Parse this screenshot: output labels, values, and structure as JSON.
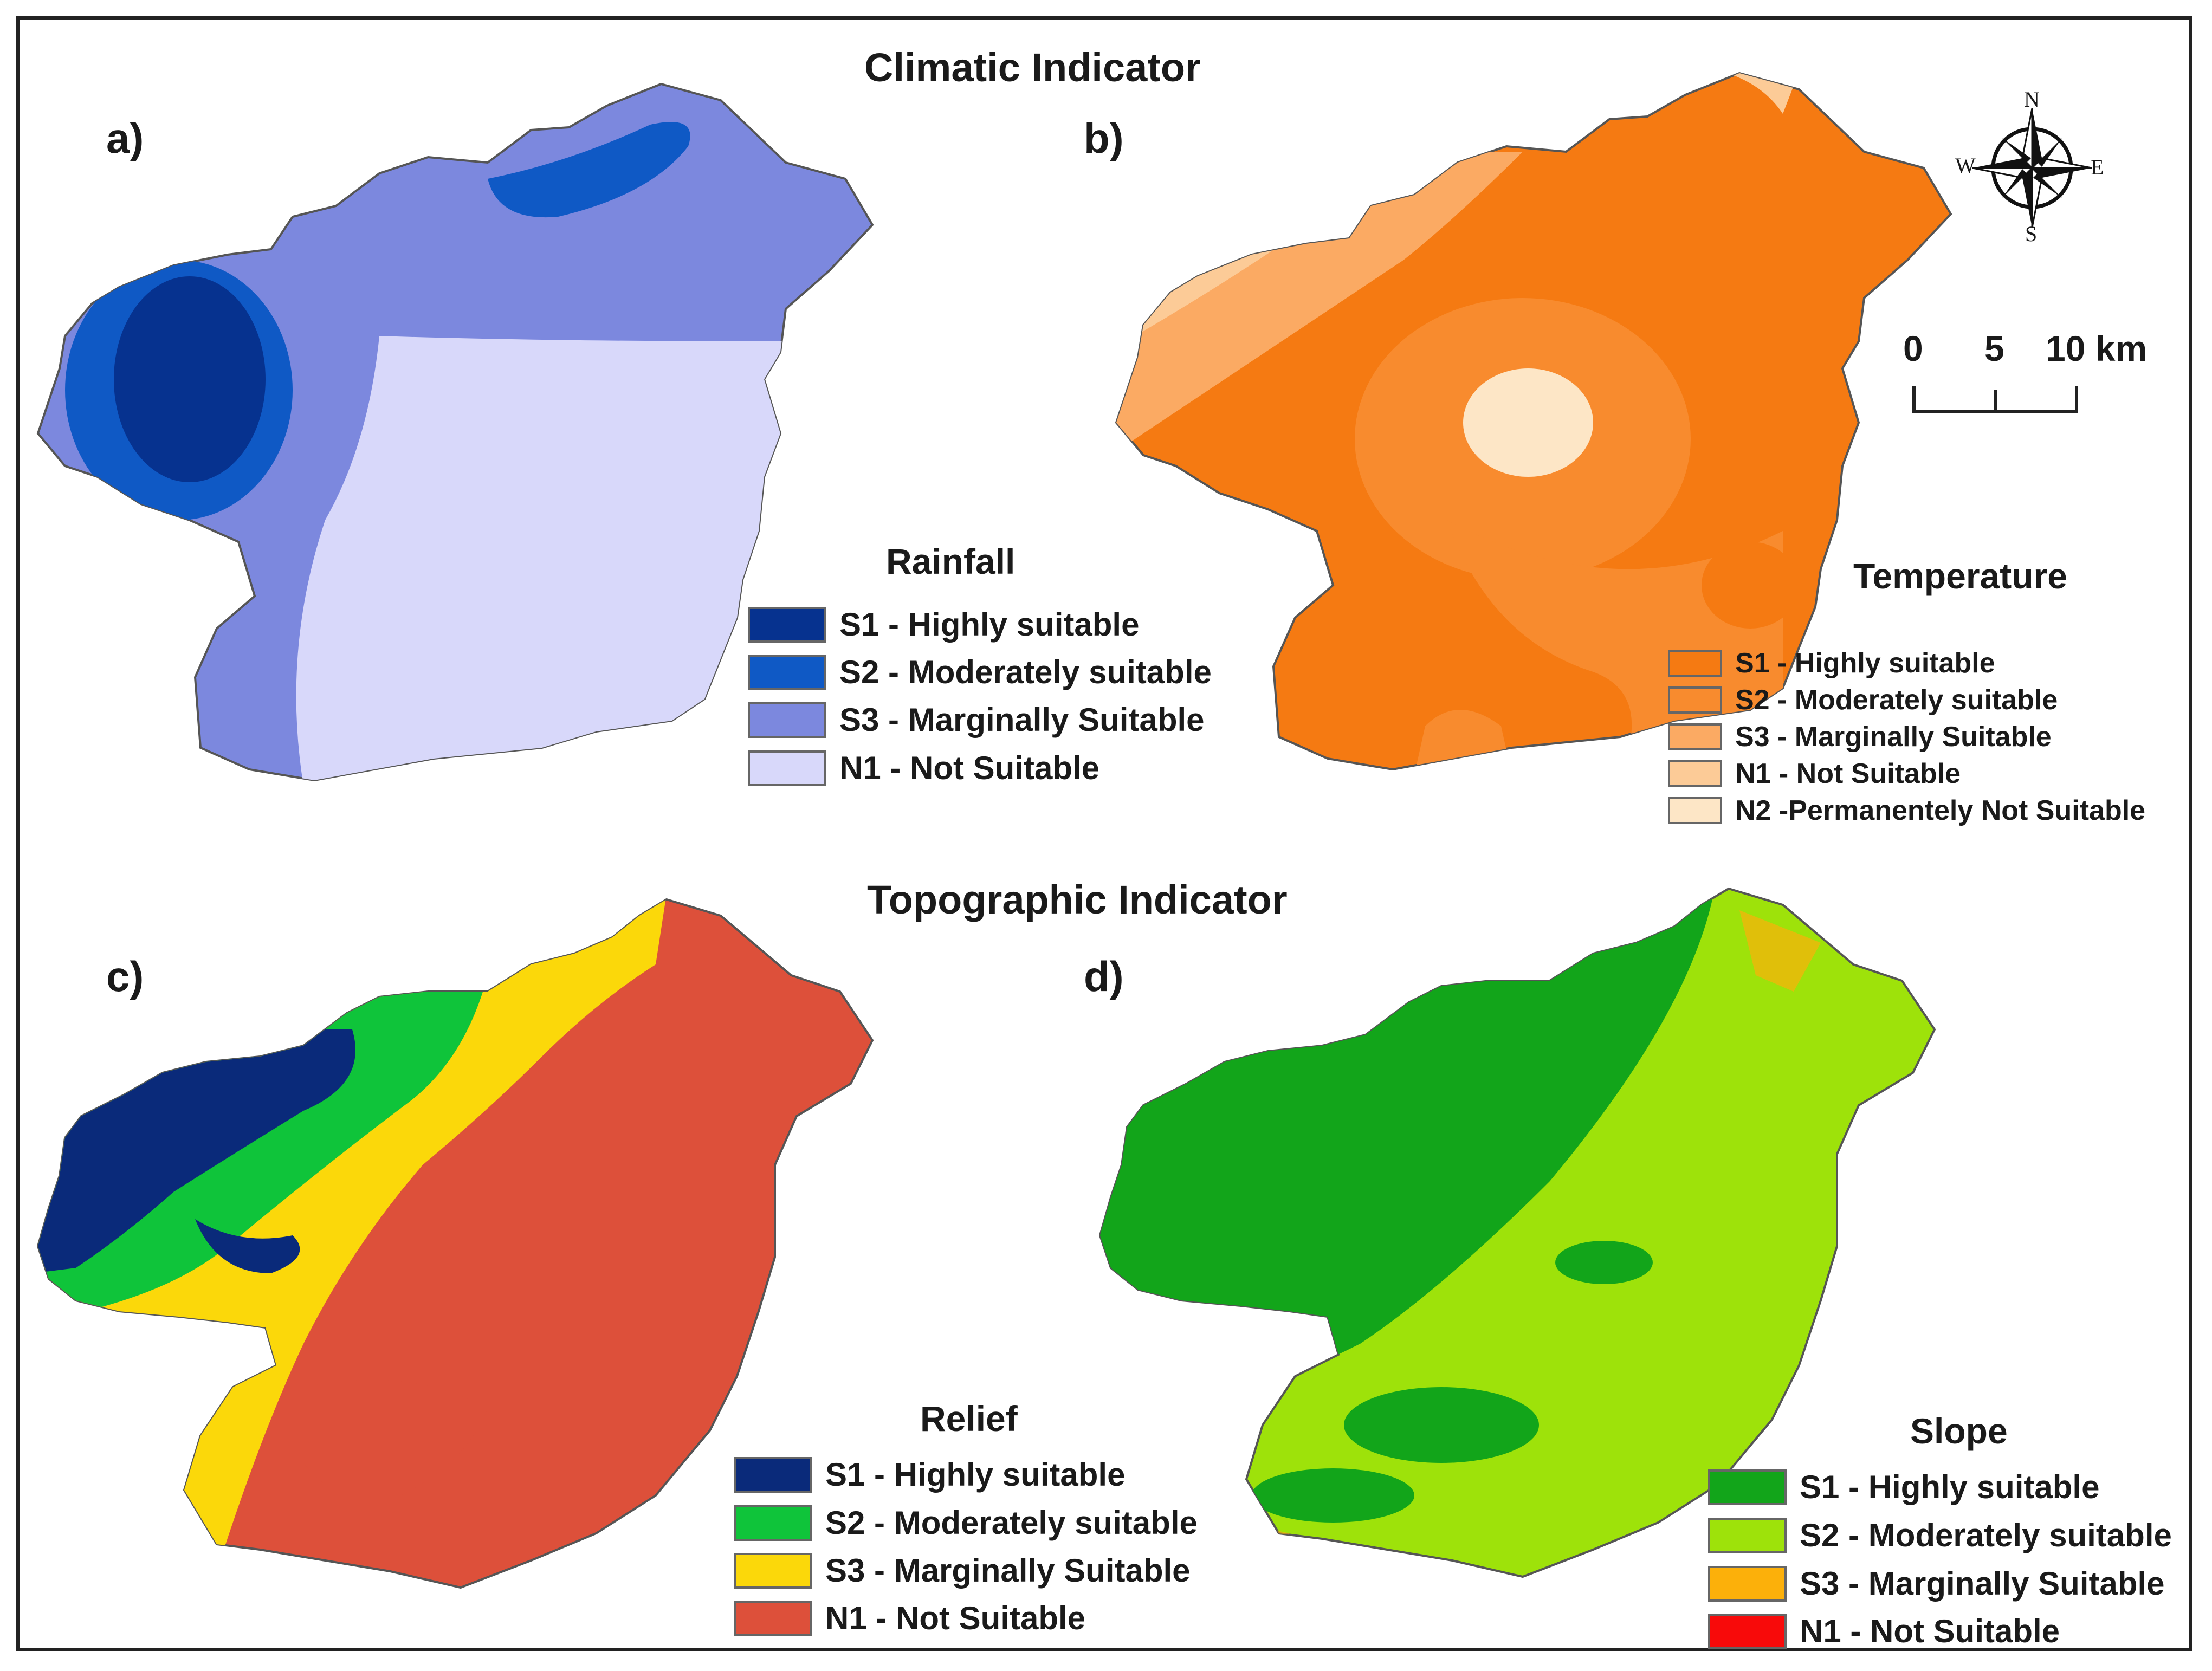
{
  "headings": {
    "climatic": "Climatic Indicator",
    "topographic": "Topographic Indicator"
  },
  "panels": [
    {
      "label": "a)",
      "legend_title": "Rainfall",
      "classes": [
        {
          "text": "S1 - Highly suitable",
          "color": "#06328f"
        },
        {
          "text": "S2 - Moderately suitable",
          "color": "#0f59c5"
        },
        {
          "text": "S3 - Marginally Suitable",
          "color": "#7c88de"
        },
        {
          "text": "N1 - Not Suitable",
          "color": "#d8d8fa"
        }
      ]
    },
    {
      "label": "b)",
      "legend_title": "Temperature",
      "classes": [
        {
          "text": "S1 - Highly suitable",
          "color": "#f57a12"
        },
        {
          "text": "S2 - Moderately suitable",
          "color": "#f88b2e"
        },
        {
          "text": "S3 - Marginally Suitable",
          "color": "#fbaa63"
        },
        {
          "text": "N1 - Not Suitable",
          "color": "#fccb97"
        },
        {
          "text": "N2 -Permanentely  Not Suitable",
          "color": "#fde6c6"
        }
      ]
    },
    {
      "label": "c)",
      "legend_title": "Relief",
      "classes": [
        {
          "text": "S1 - Highly suitable",
          "color": "#0a2a7a"
        },
        {
          "text": "S2 - Moderately suitable",
          "color": "#0fc43a"
        },
        {
          "text": "S3 - Marginally Suitable",
          "color": "#fbd80a"
        },
        {
          "text": "N1 - Not Suitable",
          "color": "#dd503a"
        }
      ]
    },
    {
      "label": "d)",
      "legend_title": "Slope",
      "classes": [
        {
          "text": "S1 - Highly suitable",
          "color": "#12a51a"
        },
        {
          "text": "S2 - Moderately suitable",
          "color": "#9ee20a"
        },
        {
          "text": "S3 - Marginally Suitable",
          "color": "#fcb00a"
        },
        {
          "text": "N1 - Not Suitable",
          "color": "#f80a0a"
        }
      ]
    }
  ],
  "north_arrow": {
    "n": "N",
    "s": "S",
    "e": "E",
    "w": "W"
  },
  "scale_bar": {
    "ticks": [
      "0",
      "5",
      "10 km"
    ]
  }
}
